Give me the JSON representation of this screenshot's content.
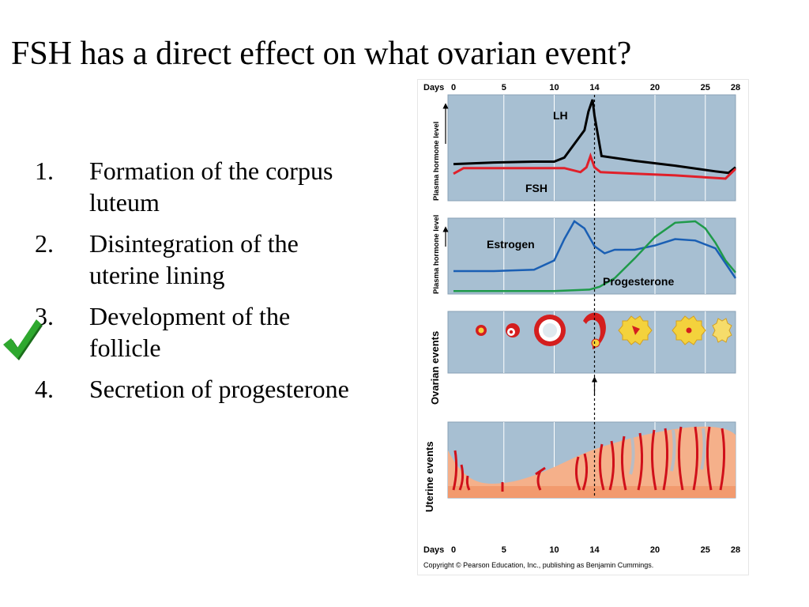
{
  "slide": {
    "title": "FSH has a direct effect on what ovarian event?"
  },
  "answers": [
    {
      "number": "1.",
      "text": "Formation of the corpus luteum",
      "correct": false
    },
    {
      "number": "2.",
      "text": "Disintegration of the uterine lining",
      "correct": false
    },
    {
      "number": "3.",
      "text": "Development of the follicle",
      "correct": true
    },
    {
      "number": "4.",
      "text": "Secretion of progesterone",
      "correct": false
    }
  ],
  "icons": {
    "correct_marker": "checkmark-icon"
  },
  "colors": {
    "panel": "#a7bfd2",
    "lh": "#000000",
    "fsh": "#e0202a",
    "estrogen": "#1a5fb4",
    "progesterone": "#1f9a4a",
    "follicle": "#d41e1e",
    "corpus_luteum": "#f4d23c",
    "endometrium": "#f5b08a",
    "check": "#2ea82e"
  },
  "figure": {
    "days_label": "Days",
    "day_ticks": [
      "0",
      "5",
      "10",
      "14",
      "20",
      "25",
      "28"
    ],
    "ovulation_day": 14,
    "panel1_ylabel": "Plasma hormone level",
    "panel2_ylabel": "Plasma hormone level",
    "panel3_label": "Ovarian events",
    "panel4_label": "Uterine events",
    "lh_label": "LH",
    "fsh_label": "FSH",
    "estrogen_label": "Estrogen",
    "progesterone_label": "Progesterone",
    "copyright": "Copyright © Pearson Education, Inc., publishing as Benjamin Cummings."
  },
  "chart_data": {
    "type": "line",
    "x_unit": "day",
    "xlim": [
      0,
      28
    ],
    "panels": [
      {
        "series": [
          {
            "name": "LH",
            "x": [
              0,
              4,
              8,
              10,
              11,
              12,
              13,
              13.4,
              13.8,
              14,
              14.7,
              18,
              22,
              26,
              27.3,
              28
            ],
            "y": [
              20,
              22,
              23,
              23,
              28,
              45,
              62,
              85,
              100,
              80,
              30,
              24,
              18,
              11,
              9,
              16
            ]
          },
          {
            "name": "FSH",
            "x": [
              0,
              1,
              4,
              8,
              11,
              12.6,
              13.2,
              13.6,
              14,
              14.6,
              18,
              22,
              27,
              28
            ],
            "y": [
              8,
              15,
              15,
              15,
              15,
              10,
              16,
              30,
              16,
              10,
              8,
              6,
              2,
              14
            ]
          }
        ]
      },
      {
        "series": [
          {
            "name": "Estrogen",
            "x": [
              0,
              4,
              8,
              10,
              11,
              12,
              13,
              14,
              15,
              16,
              18,
              20,
              22,
              24,
              26,
              28
            ],
            "y": [
              30,
              30,
              32,
              45,
              75,
              100,
              90,
              65,
              55,
              60,
              60,
              66,
              75,
              73,
              62,
              20
            ]
          },
          {
            "name": "Progesterone",
            "x": [
              0,
              10,
              13.5,
              14.5,
              16,
              18,
              20,
              22,
              24,
              25,
              26,
              27,
              28
            ],
            "y": [
              2,
              2,
              4,
              8,
              20,
              48,
              78,
              98,
              100,
              90,
              70,
              45,
              28
            ]
          }
        ]
      }
    ]
  }
}
